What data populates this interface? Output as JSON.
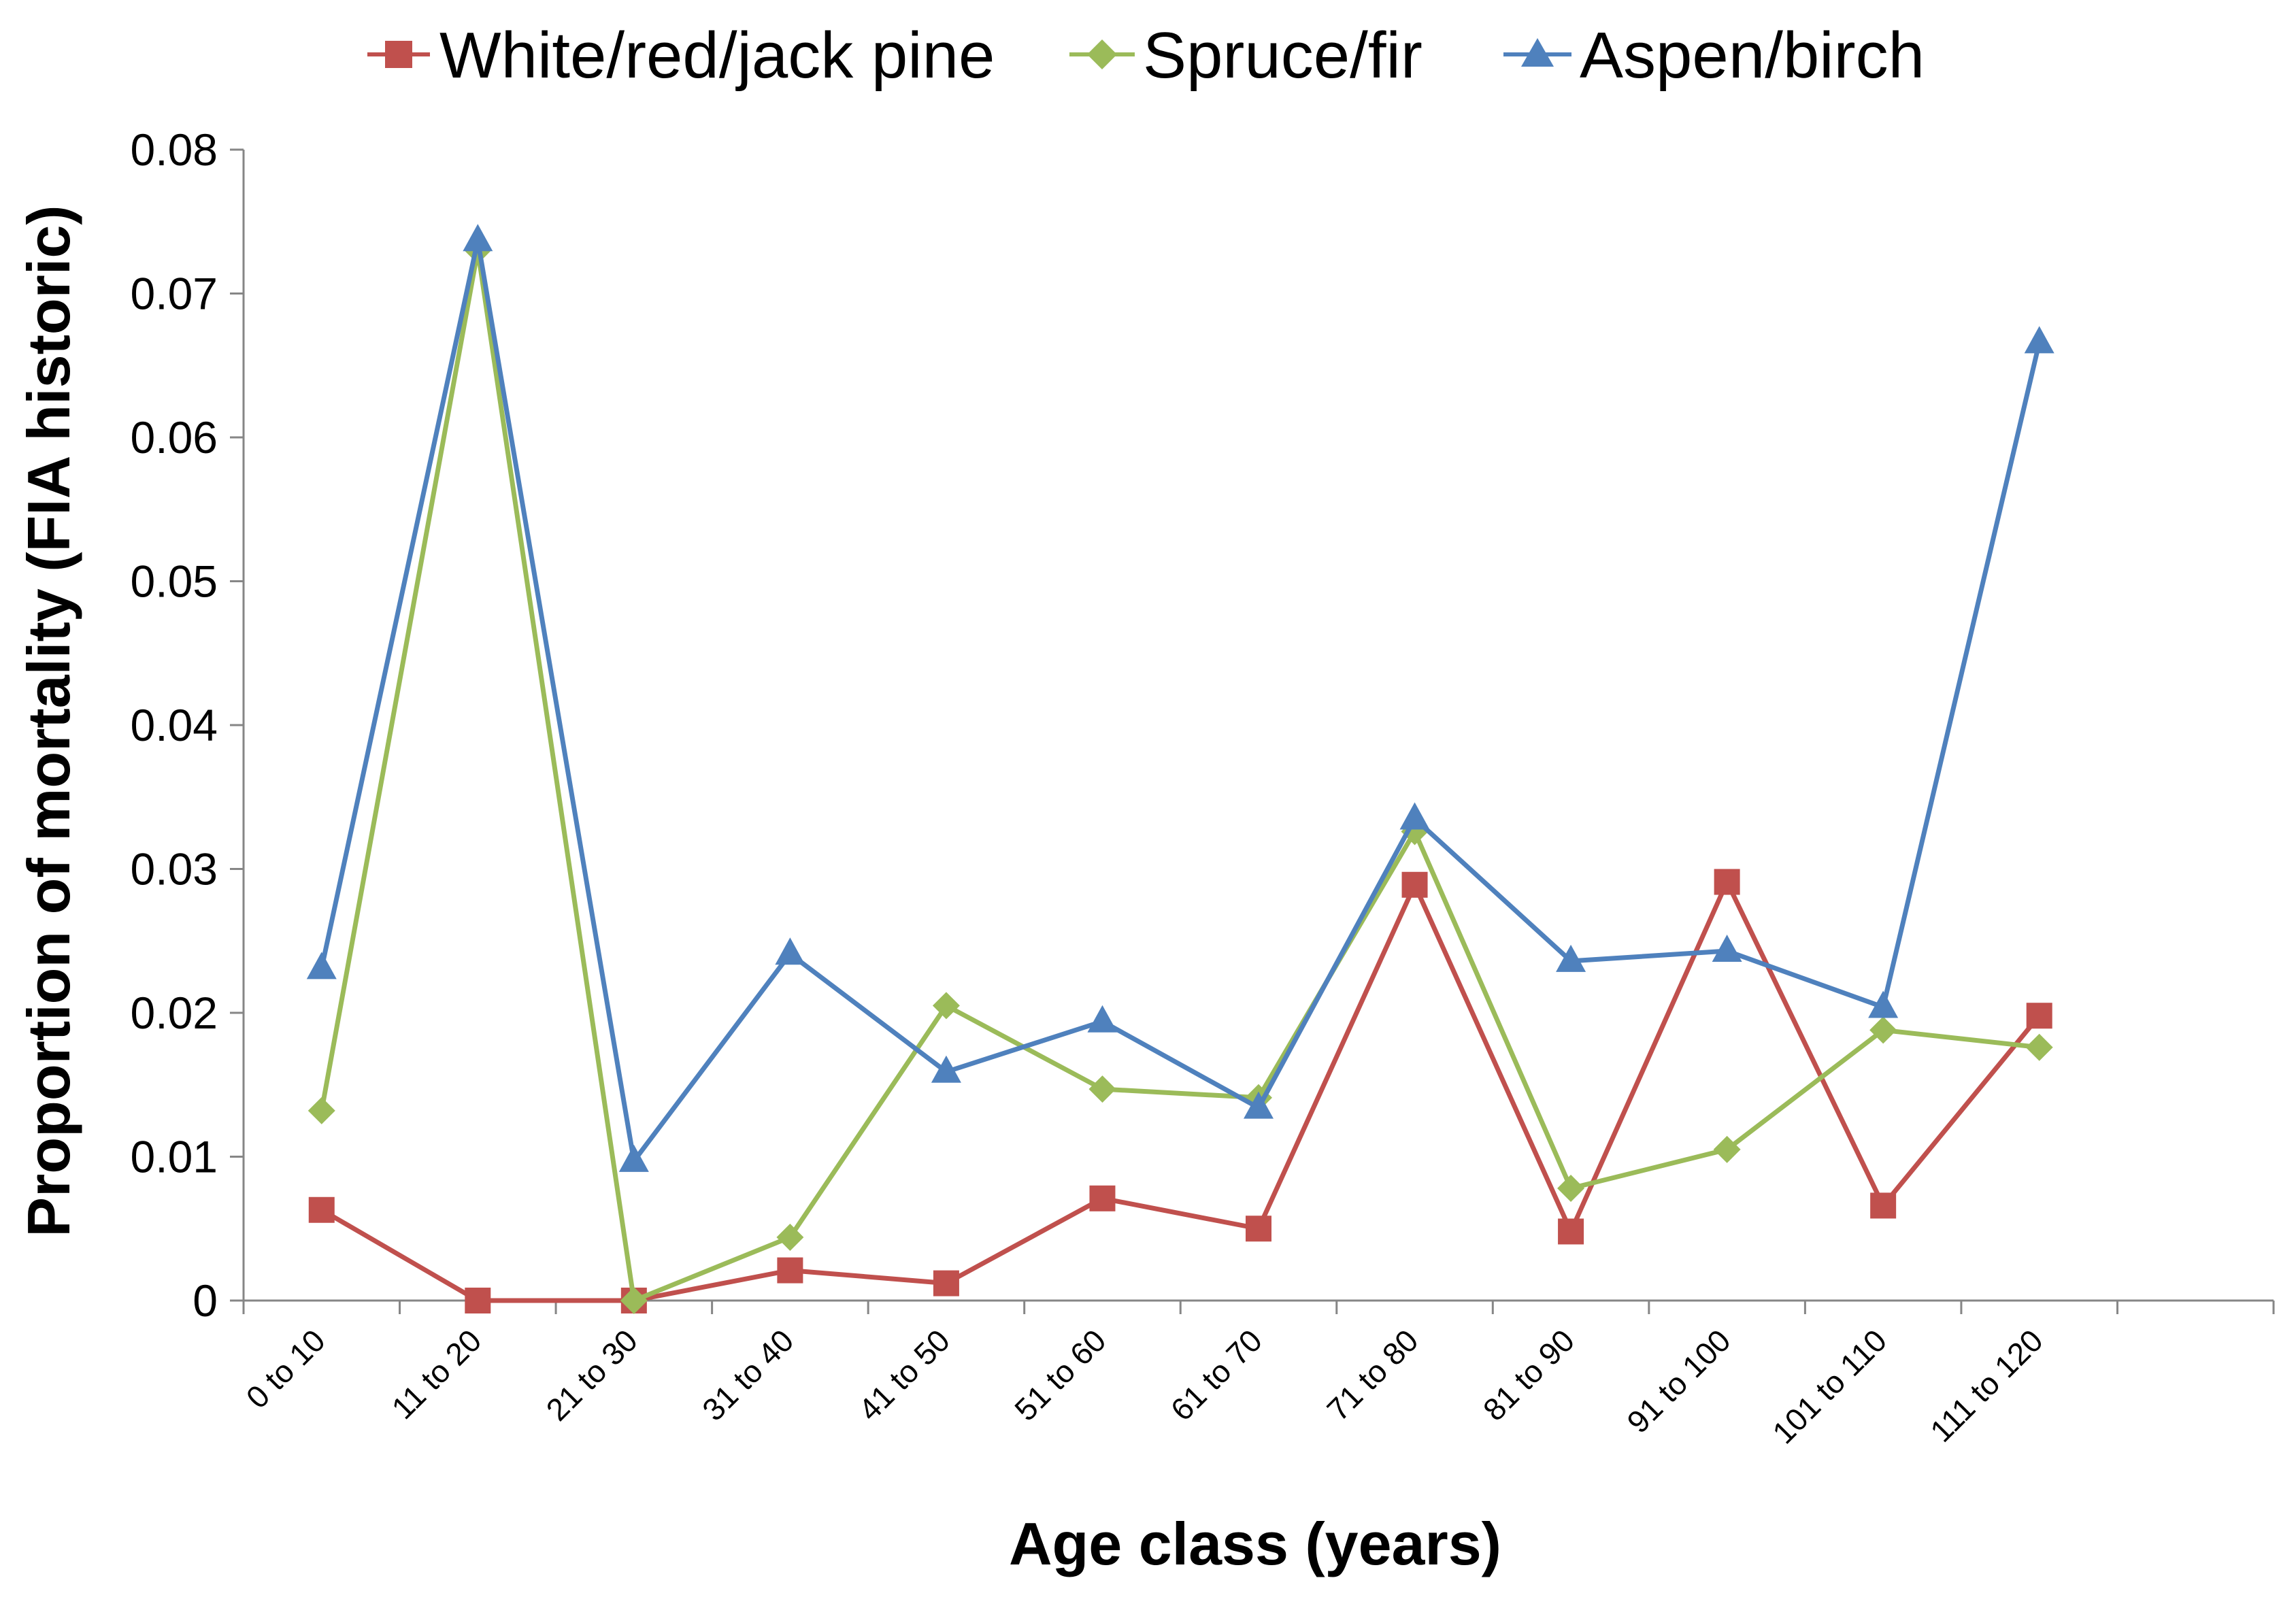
{
  "chart_data": {
    "type": "line",
    "title": "",
    "xlabel": "Age class (years)",
    "ylabel": "Proportion of mortality (FIA historic)",
    "ylim": [
      0,
      0.08
    ],
    "yticks": [
      "0",
      "0.01",
      "0.02",
      "0.03",
      "0.04",
      "0.05",
      "0.06",
      "0.07",
      "0.08"
    ],
    "grid": false,
    "legend_position": "top",
    "categories": [
      "0 to 10",
      "11 to 20",
      "21 to 30",
      "31 to 40",
      "41 to 50",
      "51 to 60",
      "61 to 70",
      "71 to 80",
      "81 to 90",
      "91 to 100",
      "101 to 110",
      "111 to 120"
    ],
    "series": [
      {
        "name": "White/red/jack pine",
        "color": "#c0504d",
        "marker": "square",
        "values": [
          0.0063,
          0.0,
          0.0,
          0.0021,
          0.0012,
          0.0071,
          0.005,
          0.0289,
          0.0048,
          0.0291,
          0.0066,
          0.0198
        ]
      },
      {
        "name": "Spruce/fir",
        "color": "#9bbb59",
        "marker": "diamond",
        "values": [
          0.0132,
          0.073,
          0.0,
          0.0044,
          0.0205,
          0.0147,
          0.0141,
          0.0326,
          0.0078,
          0.0105,
          0.0188,
          0.0176
        ]
      },
      {
        "name": "Aspen/birch",
        "color": "#4f81bd",
        "marker": "triangle",
        "values": [
          0.0231,
          0.0737,
          0.0097,
          0.0241,
          0.0159,
          0.0194,
          0.0134,
          0.0335,
          0.0236,
          0.0243,
          0.0204,
          0.0666
        ]
      }
    ]
  }
}
